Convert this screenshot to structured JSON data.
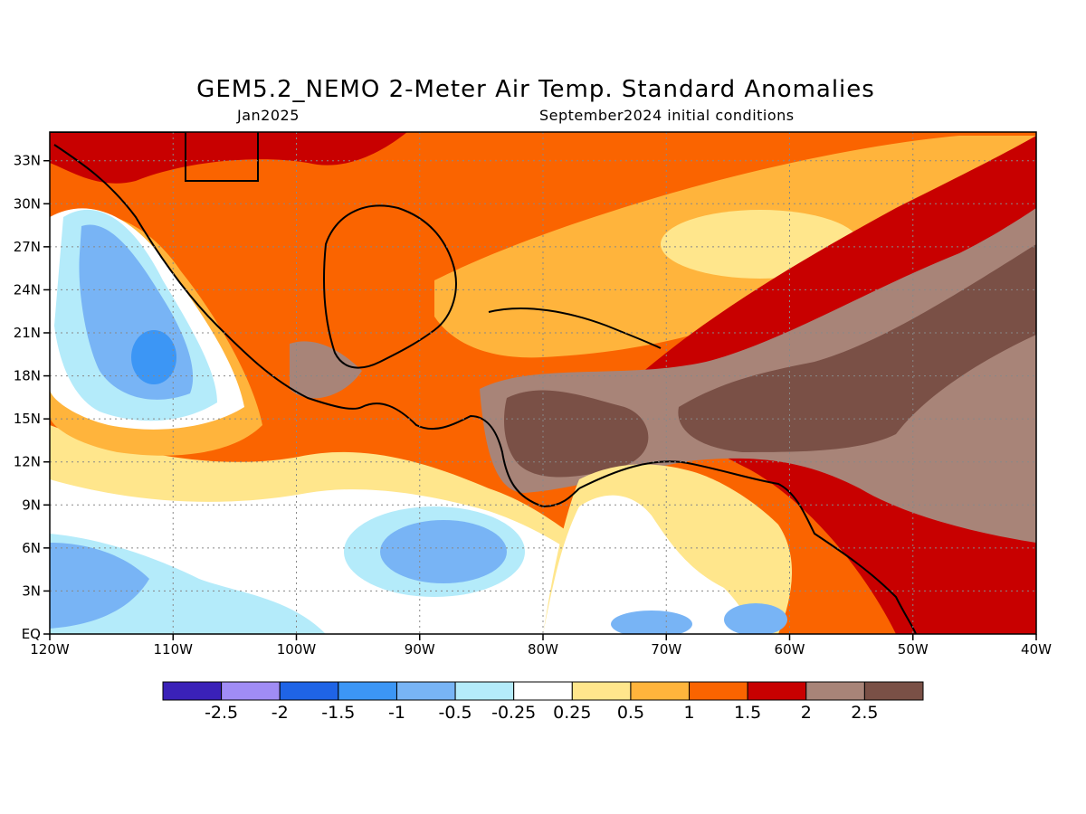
{
  "header": {
    "title": "GEM5.2_NEMO 2-Meter Air Temp. Standard Anomalies",
    "valid_month": "Jan2025",
    "initial_conditions": "September2024 initial conditions"
  },
  "map": {
    "lon_labels": [
      "120W",
      "110W",
      "100W",
      "90W",
      "80W",
      "70W",
      "60W",
      "50W",
      "40W"
    ],
    "lat_labels": [
      "EQ",
      "3N",
      "6N",
      "9N",
      "12N",
      "15N",
      "18N",
      "21N",
      "24N",
      "27N",
      "30N",
      "33N"
    ],
    "lon_range": [
      -120,
      -40
    ],
    "lat_range": [
      0,
      35
    ],
    "grid": "dotted"
  },
  "legend": {
    "colors": [
      "#3a21b8",
      "#a08cf5",
      "#1f64e6",
      "#3c96f5",
      "#78b4f5",
      "#b4ebfa",
      "#ffffff",
      "#ffe68c",
      "#ffb43c",
      "#fa6400",
      "#c80000",
      "#a88478",
      "#7a5046"
    ],
    "labels": [
      "-2.5",
      "-2",
      "-1.5",
      "-1",
      "-0.5",
      "-0.25",
      "0.25",
      "0.5",
      "1",
      "1.5",
      "2",
      "2.5"
    ]
  }
}
